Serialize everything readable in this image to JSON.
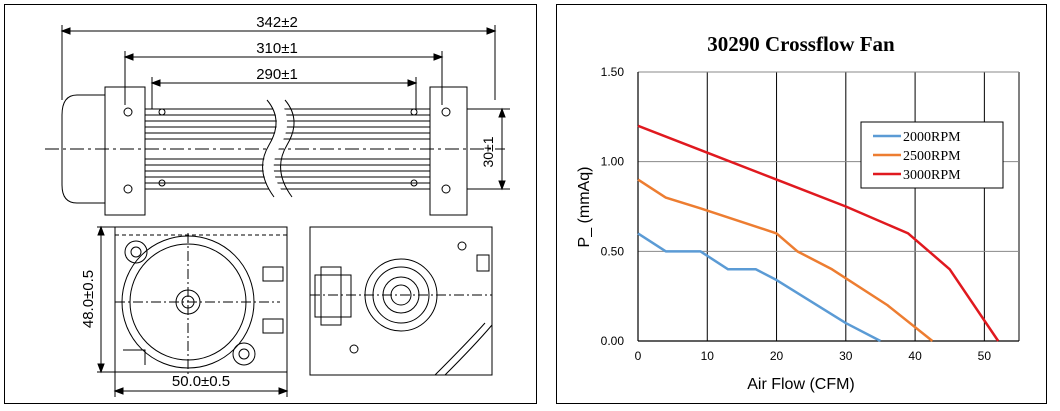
{
  "drawing": {
    "dim_overall": "342±2",
    "dim_mid": "310±1",
    "dim_inner": "290±1",
    "dim_height": "30±1",
    "dim_side_height": "48.0±0.5",
    "dim_side_width": "50.0±0.5"
  },
  "chart_data": {
    "type": "line",
    "title": "30290 Crossflow Fan",
    "xlabel": "Air Flow (CFM)",
    "ylabel": "P_  (mmAq)",
    "xlim": [
      0,
      55
    ],
    "ylim": [
      0,
      1.5
    ],
    "xticks": [
      0,
      10,
      20,
      30,
      40,
      50
    ],
    "yticks": [
      "0.00",
      "0.50",
      "1.00",
      "1.50"
    ],
    "grid": "vertical and horizontal",
    "legend_position": "upper-right",
    "series": [
      {
        "name": "2000RPM",
        "color": "#5b9bd5",
        "x": [
          0,
          4,
          9,
          13,
          17,
          20,
          30,
          35
        ],
        "y": [
          0.6,
          0.5,
          0.5,
          0.4,
          0.4,
          0.34,
          0.1,
          0.0
        ]
      },
      {
        "name": "2500RPM",
        "color": "#ed7d31",
        "x": [
          0,
          4,
          9,
          20,
          23,
          28,
          36,
          42.5
        ],
        "y": [
          0.9,
          0.8,
          0.74,
          0.6,
          0.5,
          0.4,
          0.2,
          0.0
        ]
      },
      {
        "name": "3000RPM",
        "color": "#e0191f",
        "x": [
          0,
          10,
          20,
          30,
          39,
          45,
          52
        ],
        "y": [
          1.2,
          1.05,
          0.9,
          0.75,
          0.6,
          0.4,
          0.0
        ]
      }
    ]
  }
}
